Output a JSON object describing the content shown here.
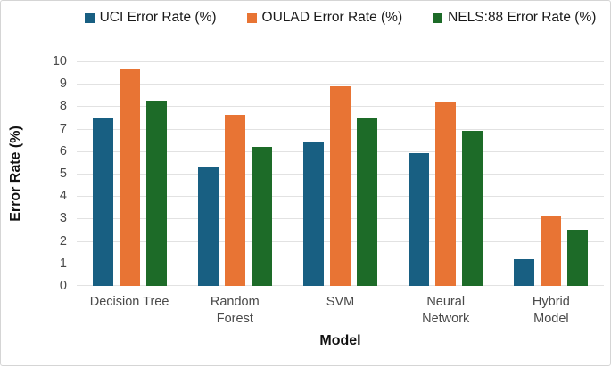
{
  "chart_data": {
    "type": "bar",
    "title": "",
    "categories": [
      "Decision Tree",
      "Random Forest",
      "SVM",
      "Neural Network",
      "Hybrid Model"
    ],
    "category_label_lines": [
      [
        "Decision Tree"
      ],
      [
        "Random",
        "Forest"
      ],
      [
        "SVM"
      ],
      [
        "Neural",
        "Network"
      ],
      [
        "Hybrid Model"
      ]
    ],
    "series": [
      {
        "name": "UCI Error Rate (%)",
        "color": "#185F82",
        "values": [
          7.5,
          5.3,
          6.4,
          5.9,
          1.2
        ]
      },
      {
        "name": "OULAD Error Rate (%)",
        "color": "#E87434",
        "values": [
          9.7,
          7.6,
          8.9,
          8.2,
          3.1
        ]
      },
      {
        "name": "NELS:88 Error Rate (%)",
        "color": "#1D6B28",
        "values": [
          8.25,
          6.2,
          7.5,
          6.9,
          2.5
        ]
      }
    ],
    "xlabel": "Model",
    "ylabel": "Error Rate (%)",
    "ylim": [
      0,
      10
    ],
    "yticks": [
      0,
      1,
      2,
      3,
      4,
      5,
      6,
      7,
      8,
      9,
      10
    ],
    "grid": "horizontal",
    "legend_position": "top",
    "gridline_color": "#e2e2e2",
    "tick_label_color": "#4a4a4a",
    "axis_title_color": "#111111"
  }
}
